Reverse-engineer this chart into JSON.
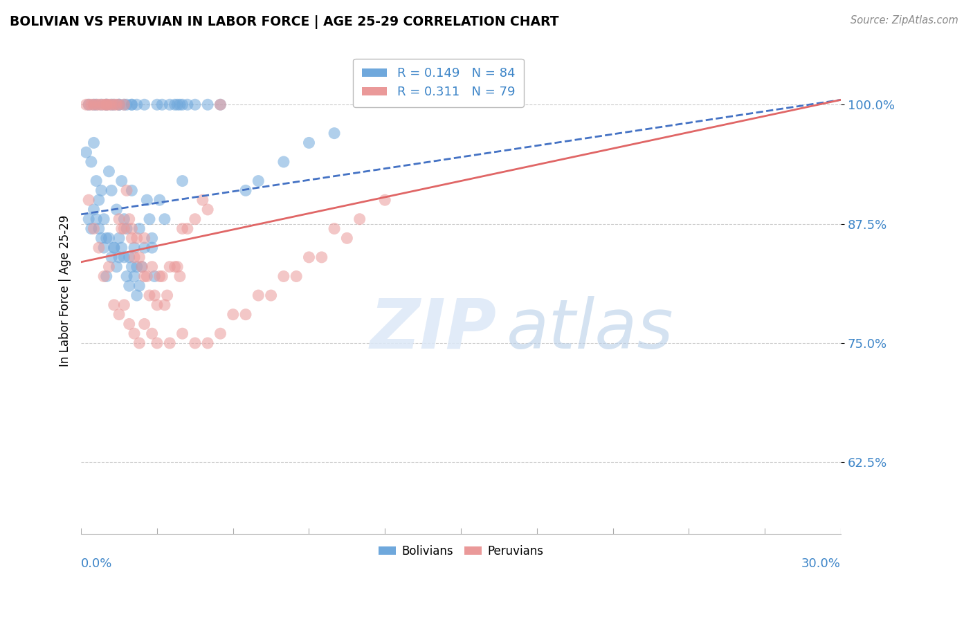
{
  "title": "BOLIVIAN VS PERUVIAN IN LABOR FORCE | AGE 25-29 CORRELATION CHART",
  "source_text": "Source: ZipAtlas.com",
  "ylabel_label": "In Labor Force | Age 25-29",
  "r_bolivian": 0.149,
  "n_bolivian": 84,
  "r_peruvian": 0.311,
  "n_peruvian": 79,
  "blue_color": "#6fa8dc",
  "pink_color": "#ea9999",
  "blue_line_color": "#4472c4",
  "pink_line_color": "#e06666",
  "text_color": "#3d85c8",
  "watermark_color": "#c9d7f0",
  "background_color": "#ffffff",
  "xlim": [
    0.0,
    30.0
  ],
  "ylim": [
    55.0,
    106.0
  ],
  "ytick_vals": [
    62.5,
    75.0,
    87.5,
    100.0
  ],
  "blue_line_y0": 88.5,
  "blue_line_y1": 100.5,
  "pink_line_y0": 83.5,
  "pink_line_y1": 100.5,
  "blue_scatter_x": [
    0.3,
    0.5,
    0.6,
    0.8,
    1.0,
    1.0,
    1.2,
    1.3,
    1.5,
    1.5,
    1.7,
    1.8,
    2.0,
    2.0,
    2.2,
    2.5,
    0.2,
    0.4,
    0.5,
    0.6,
    0.7,
    0.8,
    0.9,
    1.0,
    1.1,
    1.2,
    1.3,
    1.4,
    1.5,
    1.6,
    1.7,
    1.8,
    1.9,
    2.0,
    2.1,
    2.2,
    2.3,
    2.4,
    2.5,
    2.6,
    2.7,
    2.8,
    2.9,
    3.0,
    3.1,
    3.2,
    3.5,
    3.7,
    3.8,
    3.9,
    4.0,
    4.2,
    4.5,
    5.0,
    5.5,
    0.3,
    0.4,
    0.5,
    0.6,
    0.7,
    0.8,
    0.9,
    1.0,
    1.1,
    1.2,
    1.3,
    1.4,
    1.5,
    1.6,
    1.7,
    1.8,
    1.9,
    2.0,
    2.1,
    2.2,
    2.3,
    2.8,
    3.3,
    4.0,
    6.5,
    7.0,
    8.0,
    9.0,
    10.0
  ],
  "blue_scatter_y": [
    100.0,
    100.0,
    100.0,
    100.0,
    100.0,
    100.0,
    100.0,
    100.0,
    100.0,
    100.0,
    100.0,
    100.0,
    100.0,
    100.0,
    100.0,
    100.0,
    95.0,
    94.0,
    96.0,
    92.0,
    90.0,
    91.0,
    88.0,
    82.0,
    93.0,
    91.0,
    85.0,
    89.0,
    86.0,
    92.0,
    88.0,
    87.0,
    84.0,
    91.0,
    85.0,
    83.0,
    87.0,
    83.0,
    85.0,
    90.0,
    88.0,
    86.0,
    82.0,
    100.0,
    90.0,
    100.0,
    100.0,
    100.0,
    100.0,
    100.0,
    100.0,
    100.0,
    100.0,
    100.0,
    100.0,
    88.0,
    87.0,
    89.0,
    88.0,
    87.0,
    86.0,
    85.0,
    86.0,
    86.0,
    84.0,
    85.0,
    83.0,
    84.0,
    85.0,
    84.0,
    82.0,
    81.0,
    83.0,
    82.0,
    80.0,
    81.0,
    85.0,
    88.0,
    92.0,
    91.0,
    92.0,
    94.0,
    96.0,
    97.0
  ],
  "pink_scatter_x": [
    0.2,
    0.3,
    0.4,
    0.5,
    0.6,
    0.7,
    0.8,
    0.9,
    1.0,
    1.0,
    1.1,
    1.2,
    1.3,
    1.4,
    1.5,
    1.5,
    1.6,
    1.7,
    1.7,
    1.8,
    1.9,
    2.0,
    2.0,
    2.1,
    2.2,
    2.3,
    2.4,
    2.5,
    2.5,
    2.6,
    2.7,
    2.8,
    2.9,
    3.0,
    3.1,
    3.2,
    3.3,
    3.4,
    3.5,
    3.7,
    3.8,
    3.9,
    4.0,
    4.2,
    4.5,
    4.8,
    5.0,
    5.5,
    0.3,
    0.5,
    0.7,
    0.9,
    1.1,
    1.3,
    1.5,
    1.7,
    1.9,
    2.1,
    2.3,
    2.5,
    2.8,
    3.0,
    3.5,
    4.0,
    5.0,
    6.0,
    7.0,
    8.0,
    9.0,
    10.0,
    4.5,
    5.5,
    6.5,
    7.5,
    8.5,
    9.5,
    10.5,
    11.0,
    12.0
  ],
  "pink_scatter_y": [
    100.0,
    100.0,
    100.0,
    100.0,
    100.0,
    100.0,
    100.0,
    100.0,
    100.0,
    100.0,
    100.0,
    100.0,
    100.0,
    100.0,
    100.0,
    88.0,
    87.0,
    100.0,
    87.0,
    91.0,
    88.0,
    86.0,
    87.0,
    84.0,
    86.0,
    84.0,
    83.0,
    86.0,
    82.0,
    82.0,
    80.0,
    83.0,
    80.0,
    79.0,
    82.0,
    82.0,
    79.0,
    80.0,
    83.0,
    83.0,
    83.0,
    82.0,
    87.0,
    87.0,
    88.0,
    90.0,
    89.0,
    100.0,
    90.0,
    87.0,
    85.0,
    82.0,
    83.0,
    79.0,
    78.0,
    79.0,
    77.0,
    76.0,
    75.0,
    77.0,
    76.0,
    75.0,
    75.0,
    76.0,
    75.0,
    78.0,
    80.0,
    82.0,
    84.0,
    87.0,
    75.0,
    76.0,
    78.0,
    80.0,
    82.0,
    84.0,
    86.0,
    88.0,
    90.0
  ],
  "watermark_zip": "ZIP",
  "watermark_atlas": "atlas"
}
